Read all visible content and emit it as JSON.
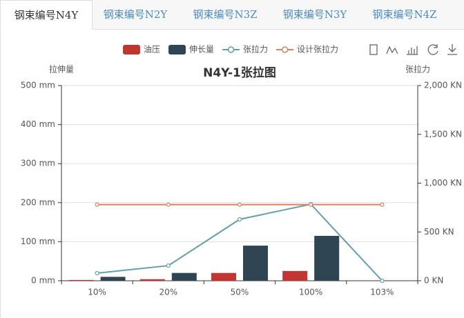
{
  "tabs": [
    "钢束编号N4Y",
    "钢束编号N2Y",
    "钢束编号N3Z",
    "钢束编号N3Y",
    "钢束编号N4Z"
  ],
  "active_tab": 0,
  "chart_data": {
    "type": "bar",
    "title": "N4Y-1张拉图",
    "y_label": "拉伸量",
    "y2_label": "张拉力",
    "categories": [
      "10%",
      "20%",
      "50%",
      "100%",
      "103%"
    ],
    "series": [
      {
        "name": "油压",
        "type": "bar",
        "color": "#c23531",
        "values": [
          2,
          4,
          20,
          25,
          0
        ]
      },
      {
        "name": "伸长量",
        "type": "bar",
        "color": "#2f4554",
        "values": [
          10,
          20,
          90,
          115,
          0
        ]
      },
      {
        "name": "张拉力",
        "type": "line",
        "axis": "y2",
        "color": "#61a0a8",
        "values": [
          78,
          155,
          629,
          784,
          0
        ]
      },
      {
        "name": "设计张拉力",
        "type": "line",
        "axis": "y2",
        "color": "#d48265",
        "values": [
          780,
          780,
          780,
          780,
          780
        ]
      }
    ],
    "ylim": [
      0,
      500
    ],
    "yticks": [
      {
        "value": 0,
        "label": "0 mm"
      },
      {
        "value": 100,
        "label": "100 mm"
      },
      {
        "value": 200,
        "label": "200 mm"
      },
      {
        "value": 300,
        "label": "300 mm"
      },
      {
        "value": 400,
        "label": "400 mm"
      },
      {
        "value": 500,
        "label": "500 mm"
      }
    ],
    "y2lim": [
      0,
      2000
    ],
    "y2ticks": [
      {
        "value": 0,
        "label": "0 KN"
      },
      {
        "value": 500,
        "label": "500 KN"
      },
      {
        "value": 1000,
        "label": "1,000 KN"
      },
      {
        "value": 1500,
        "label": "1,500 KN"
      },
      {
        "value": 2000,
        "label": "2,000 KN"
      }
    ],
    "grid": true
  }
}
